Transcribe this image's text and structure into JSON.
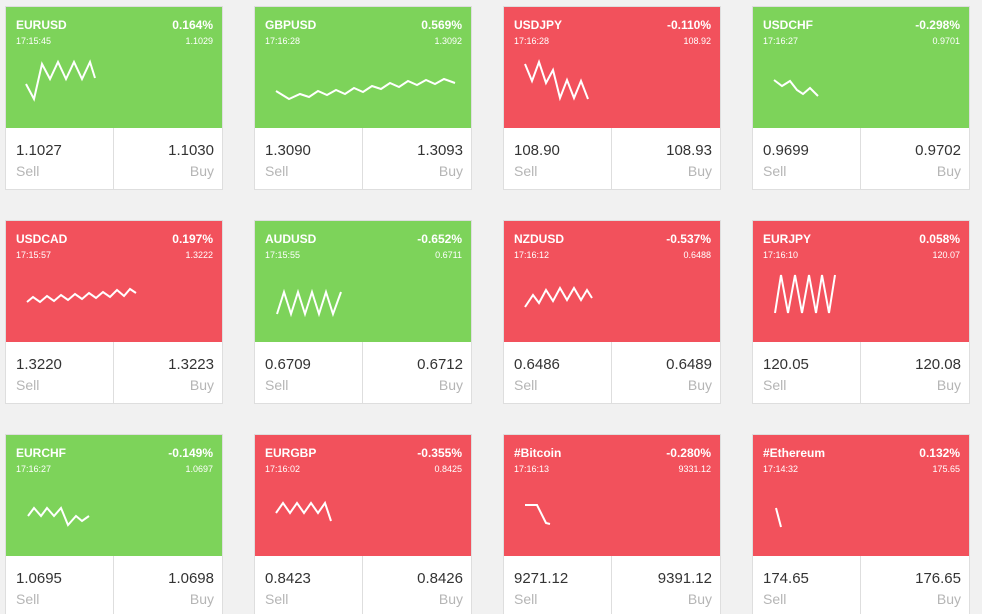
{
  "sell_label": "Sell",
  "buy_label": "Buy",
  "colors": {
    "up": "#7dd35a",
    "down": "#f2515c"
  },
  "tickers": [
    {
      "symbol": "EURUSD",
      "change": "0.164%",
      "time": "17:15:45",
      "last": "1.1029",
      "sell": "1.1027",
      "buy": "1.1030",
      "trend": "up"
    },
    {
      "symbol": "GBPUSD",
      "change": "0.569%",
      "time": "17:16:28",
      "last": "1.3092",
      "sell": "1.3090",
      "buy": "1.3093",
      "trend": "up"
    },
    {
      "symbol": "USDJPY",
      "change": "-0.110%",
      "time": "17:16:28",
      "last": "108.92",
      "sell": "108.90",
      "buy": "108.93",
      "trend": "down"
    },
    {
      "symbol": "USDCHF",
      "change": "-0.298%",
      "time": "17:16:27",
      "last": "0.9701",
      "sell": "0.9699",
      "buy": "0.9702",
      "trend": "up"
    },
    {
      "symbol": "USDCAD",
      "change": "0.197%",
      "time": "17:15:57",
      "last": "1.3222",
      "sell": "1.3220",
      "buy": "1.3223",
      "trend": "down"
    },
    {
      "symbol": "AUDUSD",
      "change": "-0.652%",
      "time": "17:15:55",
      "last": "0.6711",
      "sell": "0.6709",
      "buy": "0.6712",
      "trend": "up"
    },
    {
      "symbol": "NZDUSD",
      "change": "-0.537%",
      "time": "17:16:12",
      "last": "0.6488",
      "sell": "0.6486",
      "buy": "0.6489",
      "trend": "down"
    },
    {
      "symbol": "EURJPY",
      "change": "0.058%",
      "time": "17:16:10",
      "last": "120.07",
      "sell": "120.05",
      "buy": "120.08",
      "trend": "down"
    },
    {
      "symbol": "EURCHF",
      "change": "-0.149%",
      "time": "17:16:27",
      "last": "1.0697",
      "sell": "1.0695",
      "buy": "1.0698",
      "trend": "up"
    },
    {
      "symbol": "EURGBP",
      "change": "-0.355%",
      "time": "17:16:02",
      "last": "0.8425",
      "sell": "0.8423",
      "buy": "0.8426",
      "trend": "down"
    },
    {
      "symbol": "#Bitcoin",
      "change": "-0.280%",
      "time": "17:16:13",
      "last": "9331.12",
      "sell": "9271.12",
      "buy": "9391.12",
      "trend": "down"
    },
    {
      "symbol": "#Ethereum",
      "change": "0.132%",
      "time": "17:14:32",
      "last": "175.65",
      "sell": "174.65",
      "buy": "176.65",
      "trend": "down"
    }
  ]
}
